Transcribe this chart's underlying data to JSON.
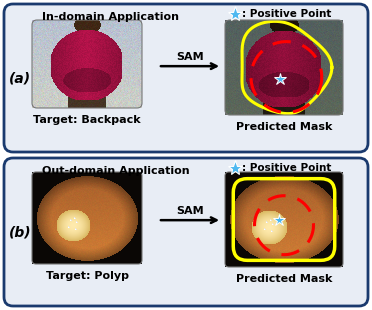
{
  "fig_width": 3.72,
  "fig_height": 3.1,
  "dpi": 100,
  "outer_bg": "#ffffff",
  "colors": {
    "panel_bg": "#e8edf5",
    "panel_border": "#1a3a6e",
    "arrow_color": "#000000",
    "yellow_outline": "#ffff00",
    "red_dashed": "#ff0000",
    "star_color": "#4db8f0",
    "star_edge": "#ffffff"
  },
  "panel_a": {
    "label": "(a)",
    "title": "In-domain Application",
    "source_label": "Target: Backpack",
    "result_label": "Predicted Mask",
    "legend_text": ": Positive Point",
    "arrow_text": "SAM"
  },
  "panel_b": {
    "label": "(b)",
    "title": "Out-domain Application",
    "source_label": "Target: Polyp",
    "result_label": "Predicted Mask",
    "legend_text": ": Positive Point",
    "arrow_text": "SAM"
  }
}
